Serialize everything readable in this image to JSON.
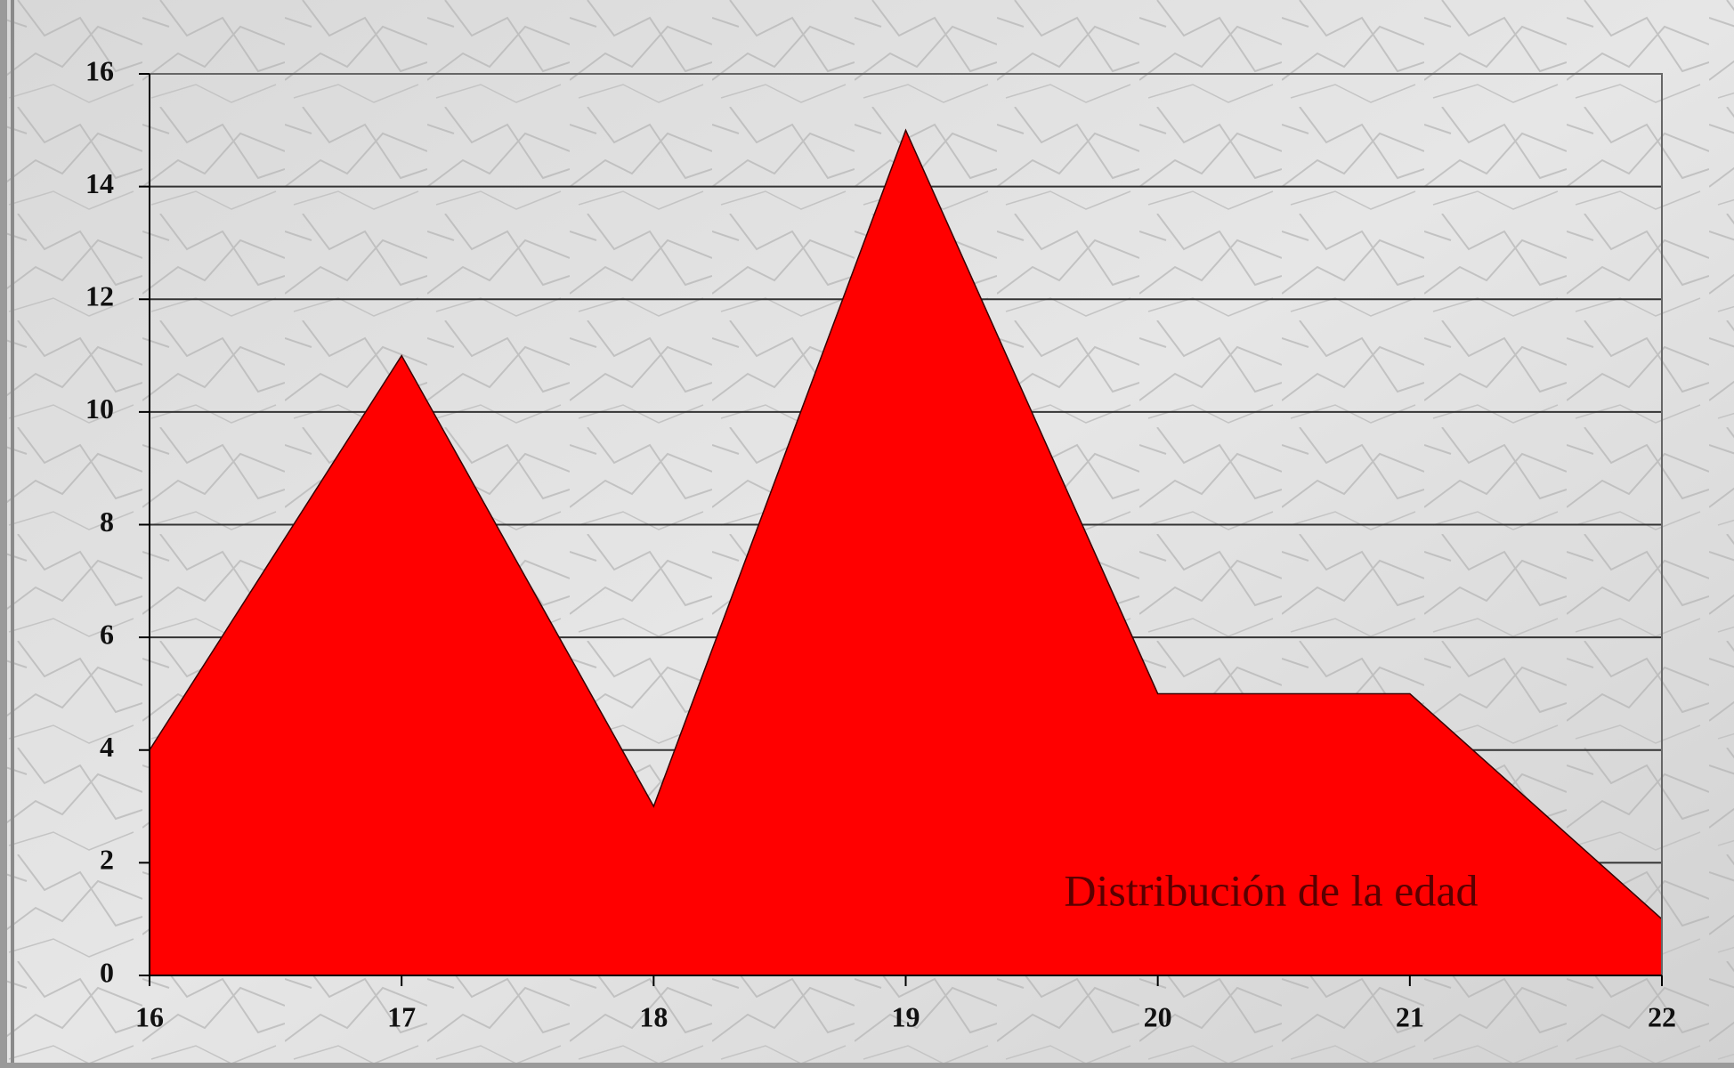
{
  "chart_data": {
    "type": "area",
    "title": "Distribución de la edad",
    "x": [
      16,
      17,
      18,
      19,
      20,
      21,
      22
    ],
    "values": [
      4,
      11,
      3,
      15,
      5,
      5,
      1
    ],
    "color": "#ff0000",
    "xlim": [
      16,
      22
    ],
    "xticks": [
      16,
      17,
      18,
      19,
      20,
      21,
      22
    ],
    "ylim": [
      0,
      16
    ],
    "yticks": [
      0,
      2,
      4,
      6,
      8,
      10,
      12,
      14,
      16
    ],
    "grid": true
  }
}
